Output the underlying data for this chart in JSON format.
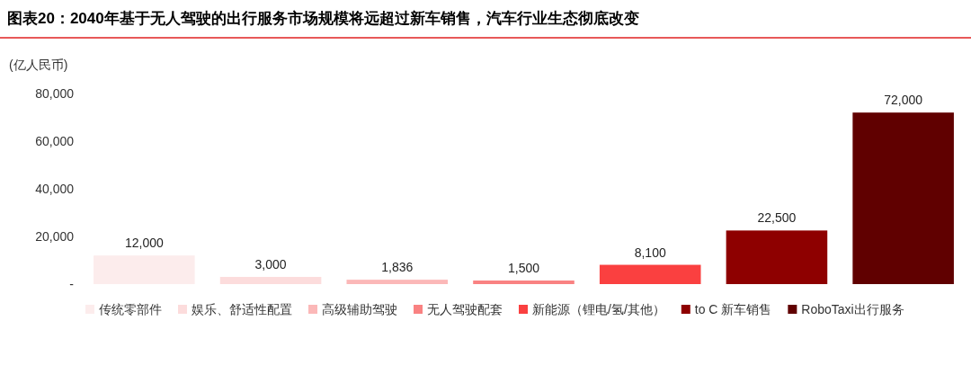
{
  "chart_data": {
    "type": "bar",
    "title": "图表20：2040年基于无人驾驶的出行服务市场规模将远超过新车销售，汽车行业生态彻底改变",
    "ylabel": "(亿人民币)",
    "categories": [
      "传统零部件",
      "娱乐、舒适性配置",
      "高级辅助驾驶",
      "无人驾驶配套",
      "新能源（锂电/氢/其他）",
      "to C 新车销售",
      "RoboTaxi出行服务"
    ],
    "values": [
      12000,
      3000,
      1836,
      1500,
      8100,
      22500,
      72000
    ],
    "value_labels": [
      "12,000",
      "3,000",
      "1,836",
      "1,500",
      "8,100",
      "22,500",
      "72,000"
    ],
    "colors": [
      "#fcecec",
      "#fcdcdc",
      "#fbb8b8",
      "#f98282",
      "#fa4040",
      "#8e0000",
      "#600000"
    ],
    "ylim": [
      0,
      80000
    ],
    "yticks": [
      {
        "value": 0,
        "label": "-"
      },
      {
        "value": 20000,
        "label": "20,000"
      },
      {
        "value": 40000,
        "label": "40,000"
      },
      {
        "value": 60000,
        "label": "60,000"
      },
      {
        "value": 80000,
        "label": "80,000"
      }
    ],
    "grid": false
  }
}
